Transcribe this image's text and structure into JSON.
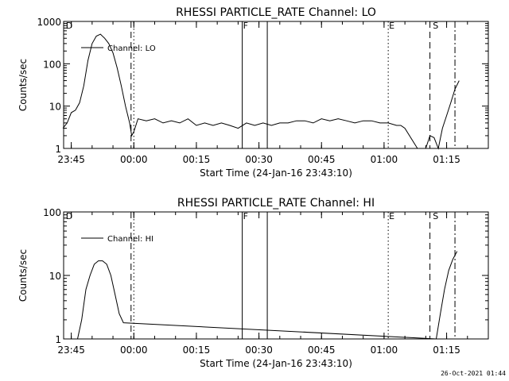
{
  "footer": "26-Oct-2021 01:44",
  "chart_data": [
    {
      "type": "line",
      "title": "RHESSI PARTICLE_RATE Channel: LO",
      "xlabel": "Start Time (24-Jan-16 23:43:10)",
      "ylabel": "Counts/sec",
      "yscale": "log",
      "ylim": [
        1,
        1000
      ],
      "xlim": [
        "23:43:10",
        "01:25:00"
      ],
      "x_ticks": [
        "23:45",
        "00:00",
        "00:15",
        "00:30",
        "00:45",
        "01:00",
        "01:15"
      ],
      "y_ticks": [
        "1",
        "10",
        "100",
        "1000"
      ],
      "legend": "top-left",
      "grid": false,
      "series": [
        {
          "name": "Channel: LO",
          "x": [
            "23:43",
            "23:44",
            "23:45",
            "23:46",
            "23:47",
            "23:48",
            "23:49",
            "23:50",
            "23:51",
            "23:52",
            "23:53",
            "23:54",
            "23:55",
            "23:56",
            "23:57",
            "23:58",
            "23:59",
            "23:59:30",
            "00:00",
            "00:01",
            "00:03",
            "00:05",
            "00:07",
            "00:09",
            "00:11",
            "00:13",
            "00:15",
            "00:17",
            "00:19",
            "00:21",
            "00:23",
            "00:25",
            "00:27",
            "00:29",
            "00:31",
            "00:33",
            "00:35",
            "00:37",
            "00:39",
            "00:41",
            "00:43",
            "00:45",
            "00:47",
            "00:49",
            "00:51",
            "00:53",
            "00:55",
            "00:57",
            "00:59",
            "01:01",
            "01:03",
            "01:04",
            "01:05",
            "01:08",
            "01:10",
            "01:11",
            "01:12",
            "01:13",
            "01:14",
            "01:15",
            "01:16",
            "01:17",
            "01:18"
          ],
          "y": [
            3,
            4,
            7,
            8,
            12,
            30,
            120,
            300,
            450,
            500,
            400,
            300,
            180,
            80,
            30,
            10,
            4,
            2,
            2.5,
            5,
            4.5,
            5,
            4,
            4.5,
            4,
            5,
            3.5,
            4,
            3.5,
            4,
            3.5,
            3,
            4,
            3.5,
            4,
            3.5,
            4,
            4,
            4.5,
            4.5,
            4,
            5,
            4.5,
            5,
            4.5,
            4,
            4.5,
            4.5,
            4,
            4,
            3.5,
            3.5,
            3,
            1,
            0.9,
            2,
            1.8,
            1,
            3,
            6,
            12,
            25,
            40
          ]
        }
      ],
      "annotations": [
        {
          "label": "D",
          "x": "23:43:30",
          "style": "none"
        },
        {
          "label": "",
          "x": "23:59:20",
          "style": "dashed"
        },
        {
          "label": "",
          "x": "00:00:00",
          "style": "dotted"
        },
        {
          "label": "F",
          "x": "00:26:00",
          "style": "solid"
        },
        {
          "label": "",
          "x": "00:32:00",
          "style": "solid"
        },
        {
          "label": "E",
          "x": "01:01:00",
          "style": "dotted"
        },
        {
          "label": "",
          "x": "01:11:00",
          "style": "dashed"
        },
        {
          "label": "S",
          "x": "01:11:30",
          "style": "none"
        },
        {
          "label": "",
          "x": "01:17:00",
          "style": "dashdot"
        }
      ]
    },
    {
      "type": "line",
      "title": "RHESSI PARTICLE_RATE Channel: HI",
      "xlabel": "Start Time (24-Jan-16 23:43:10)",
      "ylabel": "Counts/sec",
      "yscale": "log",
      "ylim": [
        1,
        100
      ],
      "xlim": [
        "23:43:10",
        "01:25:00"
      ],
      "x_ticks": [
        "23:45",
        "00:00",
        "00:15",
        "00:30",
        "00:45",
        "01:00",
        "01:15"
      ],
      "y_ticks": [
        "1",
        "10",
        "100"
      ],
      "legend": "top-left",
      "grid": false,
      "series": [
        {
          "name": "Channel: HI",
          "x": [
            "23:46:30",
            "23:47:30",
            "23:48:30",
            "23:49:30",
            "23:50:30",
            "23:51:30",
            "23:52:30",
            "23:53:30",
            "23:54:30",
            "23:55:30",
            "23:56:30",
            "23:57:30",
            "01:12:30",
            "01:13:30",
            "01:14:30",
            "01:15:30",
            "01:16:30",
            "01:17:30"
          ],
          "y": [
            0.7,
            2,
            6,
            10,
            15,
            17,
            17,
            15,
            10,
            5,
            2.5,
            1.8,
            0.8,
            2.5,
            6,
            12,
            18,
            24
          ]
        }
      ],
      "annotations": [
        {
          "label": "D",
          "x": "23:43:30",
          "style": "none"
        },
        {
          "label": "",
          "x": "23:59:20",
          "style": "dashed"
        },
        {
          "label": "",
          "x": "00:00:00",
          "style": "dotted"
        },
        {
          "label": "F",
          "x": "00:26:00",
          "style": "solid"
        },
        {
          "label": "",
          "x": "00:32:00",
          "style": "solid"
        },
        {
          "label": "E",
          "x": "01:01:00",
          "style": "dotted"
        },
        {
          "label": "",
          "x": "01:11:00",
          "style": "dashed"
        },
        {
          "label": "S",
          "x": "01:11:30",
          "style": "none"
        },
        {
          "label": "",
          "x": "01:17:00",
          "style": "dashdot"
        }
      ]
    }
  ]
}
